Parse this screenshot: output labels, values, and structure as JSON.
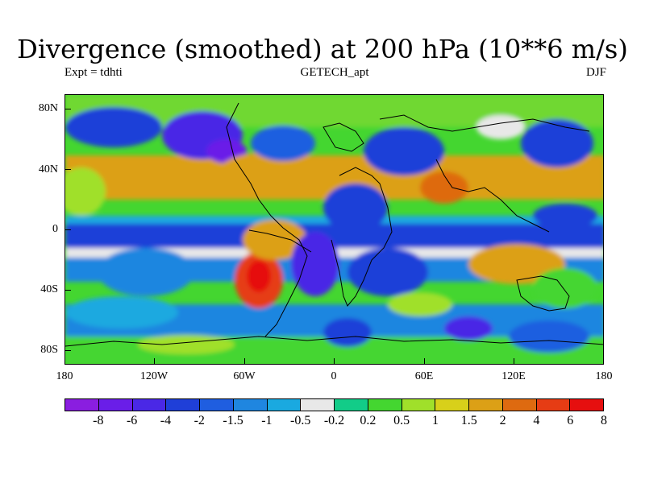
{
  "title": "Divergence (smoothed) at 200 hPa (10**6 m/s)",
  "subtitle_left": "Expt = tdhti",
  "subtitle_center": "GETECH_apt",
  "subtitle_right": "DJF",
  "lat_labels": [
    "80N",
    "40N",
    "0",
    "40S",
    "80S"
  ],
  "lon_labels": [
    "180",
    "120W",
    "60W",
    "0",
    "60E",
    "120E",
    "180"
  ],
  "colorbar": {
    "colors": [
      "#8a1ee0",
      "#6a1ee8",
      "#4a28e6",
      "#1f3fd8",
      "#1f5ee0",
      "#1f86e0",
      "#1aa9e0",
      "#e8e8e8",
      "#12cc88",
      "#44d630",
      "#a0e02a",
      "#d8d01a",
      "#dca016",
      "#de6a10",
      "#e63c14",
      "#e60f0f"
    ],
    "labels": [
      "-8",
      "-6",
      "-4",
      "-2",
      "-1.5",
      "-1",
      "-0.5",
      "-0.2",
      "0.2",
      "0.5",
      "1",
      "1.5",
      "2",
      "4",
      "6",
      "8"
    ]
  }
}
